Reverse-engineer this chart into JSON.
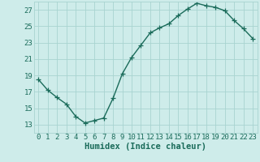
{
  "x": [
    0,
    1,
    2,
    3,
    4,
    5,
    6,
    7,
    8,
    9,
    10,
    11,
    12,
    13,
    14,
    15,
    16,
    17,
    18,
    19,
    20,
    21,
    22,
    23
  ],
  "y": [
    18.5,
    17.2,
    16.3,
    15.5,
    14.0,
    13.2,
    13.5,
    13.8,
    16.2,
    19.2,
    21.2,
    22.7,
    24.2,
    24.8,
    25.3,
    26.3,
    27.1,
    27.8,
    27.5,
    27.3,
    26.9,
    25.7,
    24.7,
    23.5
  ],
  "line_color": "#1a6b5a",
  "marker": "+",
  "bg_color": "#ceecea",
  "grid_color": "#a8d4d0",
  "text_color": "#1a6b5a",
  "xlabel": "Humidex (Indice chaleur)",
  "ylim": [
    12,
    28
  ],
  "xlim": [
    -0.5,
    23.5
  ],
  "yticks": [
    13,
    15,
    17,
    19,
    21,
    23,
    25,
    27
  ],
  "xtick_labels": [
    "0",
    "1",
    "2",
    "3",
    "4",
    "5",
    "6",
    "7",
    "8",
    "9",
    "10",
    "11",
    "12",
    "13",
    "14",
    "15",
    "16",
    "17",
    "18",
    "19",
    "20",
    "21",
    "22",
    "23"
  ],
  "xlabel_fontsize": 7.5,
  "tick_fontsize": 6.5,
  "line_width": 1.0,
  "marker_size": 4
}
